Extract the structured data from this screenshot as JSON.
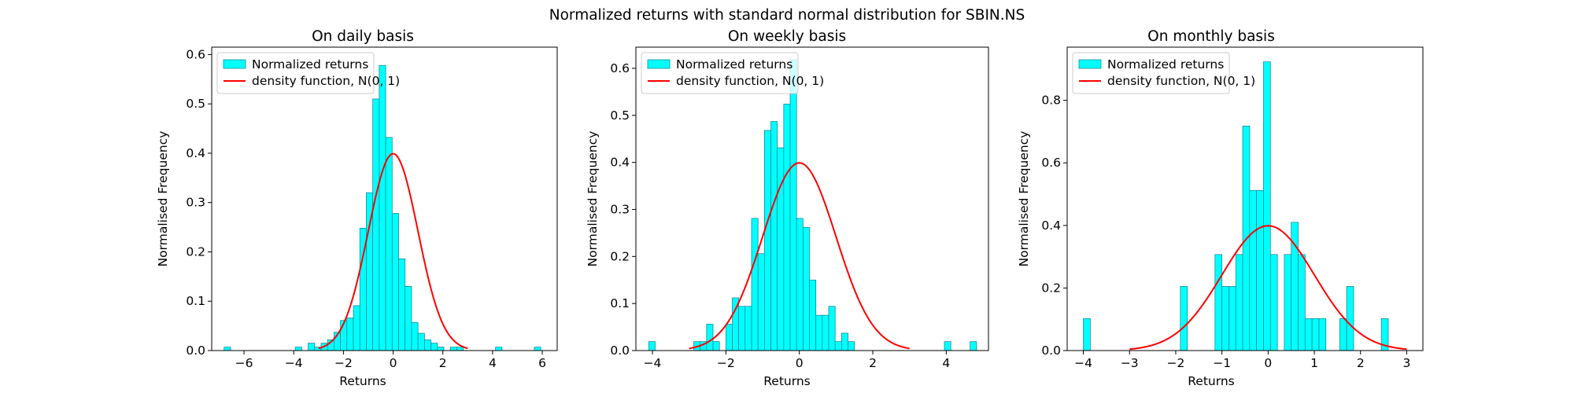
{
  "figure": {
    "suptitle": "Normalized returns with standard normal distribution for SBIN.NS"
  },
  "colors": {
    "bar_fill": "#00ffff",
    "bar_edge": "#00808a",
    "curve": "#ff0000",
    "axes": "#000000",
    "legend_edge": "#cccccc"
  },
  "chart_data": [
    {
      "type": "bar",
      "title": "On daily basis",
      "xlabel": "Returns",
      "ylabel": "Normalised Frequency",
      "xlim": [
        -7.3,
        6.6
      ],
      "ylim": [
        0,
        0.615
      ],
      "xticks": [
        -6,
        -4,
        -2,
        0,
        2,
        4,
        6
      ],
      "xtick_labels": [
        "−6",
        "−4",
        "−2",
        "0",
        "2",
        "4",
        "6"
      ],
      "yticks": [
        0.0,
        0.1,
        0.2,
        0.3,
        0.4,
        0.5,
        0.6
      ],
      "ytick_labels": [
        "0.0",
        "0.1",
        "0.2",
        "0.3",
        "0.4",
        "0.5",
        "0.6"
      ],
      "legend": {
        "position": "upper left",
        "entries": [
          "Normalized returns",
          "density function, N(0, 1)"
        ]
      },
      "grid": false,
      "histogram": {
        "bin_edges": [
          -6.8,
          -6.54,
          -6.28,
          -6.02,
          -5.76,
          -5.5,
          -5.24,
          -4.98,
          -4.72,
          -4.46,
          -4.2,
          -3.94,
          -3.68,
          -3.42,
          -3.16,
          -2.9,
          -2.64,
          -2.38,
          -2.12,
          -1.86,
          -1.6,
          -1.34,
          -1.08,
          -0.82,
          -0.56,
          -0.3,
          -0.04,
          0.22,
          0.48,
          0.74,
          1.0,
          1.26,
          1.52,
          1.78,
          2.04,
          2.3,
          2.56,
          2.82,
          3.08,
          3.34,
          3.6,
          3.86,
          4.12,
          4.38,
          4.64,
          4.9,
          5.16,
          5.42,
          5.68,
          5.94,
          6.2
        ],
        "values": [
          0.007,
          0,
          0,
          0,
          0,
          0,
          0,
          0,
          0,
          0,
          0,
          0.007,
          0,
          0.015,
          0.007,
          0.015,
          0.022,
          0.037,
          0.061,
          0.066,
          0.091,
          0.248,
          0.32,
          0.51,
          0.578,
          0.432,
          0.278,
          0.186,
          0.13,
          0.057,
          0.035,
          0.022,
          0.015,
          0.007,
          0,
          0.007,
          0.007,
          0,
          0,
          0,
          0,
          0,
          0.007,
          0,
          0,
          0,
          0,
          0,
          0.007,
          0
        ]
      },
      "curve": {
        "name": "density function, N(0, 1)",
        "mean": 0,
        "std": 1,
        "x_range": [
          -3,
          3
        ]
      }
    },
    {
      "type": "bar",
      "title": "On weekly basis",
      "xlabel": "Returns",
      "ylabel": "Normalised Frequency",
      "xlim": [
        -4.45,
        5.15
      ],
      "ylim": [
        0,
        0.645
      ],
      "xticks": [
        -4,
        -2,
        0,
        2,
        4
      ],
      "xtick_labels": [
        "−4",
        "−2",
        "0",
        "2",
        "4"
      ],
      "yticks": [
        0.0,
        0.1,
        0.2,
        0.3,
        0.4,
        0.5,
        0.6
      ],
      "ytick_labels": [
        "0.0",
        "0.1",
        "0.2",
        "0.3",
        "0.4",
        "0.5",
        "0.6"
      ],
      "legend": {
        "position": "upper left",
        "entries": [
          "Normalized returns",
          "density function, N(0, 1)"
        ]
      },
      "grid": false,
      "histogram": {
        "bin_edges": [
          -4.1,
          -3.925,
          -3.75,
          -3.575,
          -3.4,
          -3.225,
          -3.05,
          -2.875,
          -2.7,
          -2.525,
          -2.35,
          -2.175,
          -2.0,
          -1.825,
          -1.65,
          -1.475,
          -1.3,
          -1.125,
          -0.95,
          -0.775,
          -0.6,
          -0.425,
          -0.25,
          -0.075,
          0.1,
          0.275,
          0.45,
          0.625,
          0.8,
          0.975,
          1.15,
          1.325,
          1.5,
          1.675,
          1.85,
          2.025,
          2.2,
          2.375,
          2.55,
          2.725,
          2.9,
          3.075,
          3.25,
          3.425,
          3.6,
          3.775,
          3.95,
          4.125,
          4.3,
          4.475,
          4.65,
          4.825
        ],
        "values": [
          0.019,
          0,
          0,
          0,
          0,
          0,
          0,
          0.019,
          0.019,
          0.056,
          0.019,
          0,
          0.056,
          0.112,
          0.094,
          0.094,
          0.281,
          0.206,
          0.468,
          0.487,
          0.431,
          0.524,
          0.618,
          0.281,
          0.262,
          0.15,
          0.075,
          0.075,
          0.094,
          0.019,
          0.037,
          0.019,
          0,
          0,
          0,
          0,
          0,
          0,
          0,
          0,
          0,
          0,
          0,
          0,
          0,
          0,
          0.019,
          0,
          0,
          0,
          0.019
        ]
      },
      "curve": {
        "name": "density function, N(0, 1)",
        "mean": 0,
        "std": 1,
        "x_range": [
          -3,
          3
        ]
      }
    },
    {
      "type": "bar",
      "title": "On monthly basis",
      "xlabel": "Returns",
      "ylabel": "Normalised Frequency",
      "xlim": [
        -4.35,
        3.35
      ],
      "ylim": [
        0,
        0.97
      ],
      "xticks": [
        -4,
        -3,
        -2,
        -1,
        0,
        1,
        2,
        3
      ],
      "xtick_labels": [
        "−4",
        "−3",
        "−2",
        "−1",
        "0",
        "1",
        "2",
        "3"
      ],
      "yticks": [
        0.0,
        0.2,
        0.4,
        0.6,
        0.8
      ],
      "ytick_labels": [
        "0.0",
        "0.2",
        "0.4",
        "0.6",
        "0.8"
      ],
      "legend": {
        "position": "upper left",
        "entries": [
          "Normalized returns",
          "density function, N(0, 1)"
        ]
      },
      "grid": false,
      "histogram": {
        "bin_edges": [
          -4.0,
          -3.85,
          -3.7,
          -3.55,
          -3.4,
          -3.25,
          -3.1,
          -2.95,
          -2.8,
          -2.65,
          -2.5,
          -2.35,
          -2.2,
          -2.05,
          -1.9,
          -1.75,
          -1.6,
          -1.45,
          -1.3,
          -1.15,
          -1.0,
          -0.85,
          -0.7,
          -0.55,
          -0.4,
          -0.25,
          -0.1,
          0.05,
          0.2,
          0.35,
          0.5,
          0.65,
          0.8,
          0.95,
          1.1,
          1.25,
          1.4,
          1.55,
          1.7,
          1.85,
          2.0,
          2.15,
          2.3,
          2.45,
          2.6,
          2.75
        ],
        "values": [
          0.102,
          0,
          0,
          0,
          0,
          0,
          0,
          0,
          0,
          0,
          0,
          0,
          0,
          0,
          0.205,
          0,
          0,
          0,
          0,
          0.307,
          0.205,
          0.205,
          0.307,
          0.718,
          0.512,
          0.512,
          0.923,
          0.307,
          0,
          0.307,
          0.41,
          0.307,
          0.102,
          0.102,
          0.102,
          0,
          0,
          0.102,
          0.205,
          0,
          0,
          0,
          0,
          0.102,
          0
        ]
      },
      "curve": {
        "name": "density function, N(0, 1)",
        "mean": 0,
        "std": 1,
        "x_range": [
          -3,
          3
        ]
      }
    }
  ]
}
